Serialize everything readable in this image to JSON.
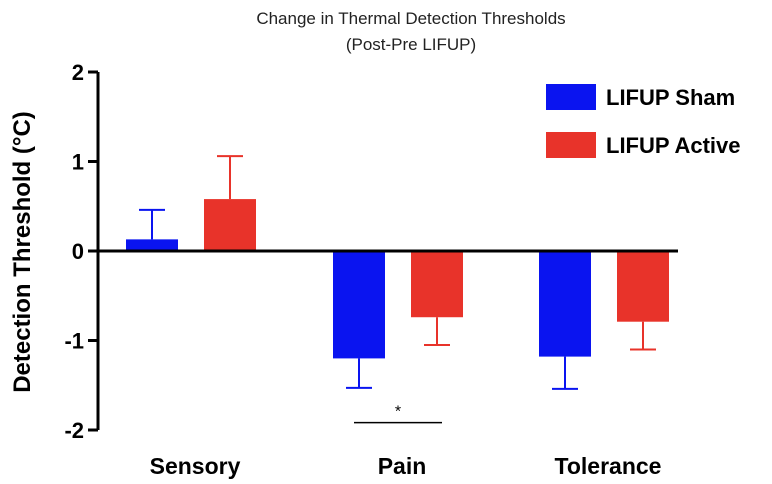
{
  "chart_data": {
    "type": "bar",
    "title": "Change in Thermal Detection Thresholds",
    "subtitle": "(Post-Pre LIFUP)",
    "xlabel": "",
    "ylabel": "Detection Threshold (°C)",
    "ylim": [
      -2,
      2
    ],
    "yticks": [
      2,
      1,
      0,
      -1,
      -2
    ],
    "ytick_labels": [
      "2",
      "1",
      "0",
      "-1",
      "-2"
    ],
    "categories": [
      "Sensory",
      "Pain",
      "Tolerance"
    ],
    "series": [
      {
        "name": "LIFUP Sham",
        "color": "#0a14f0",
        "values": [
          0.13,
          -1.2,
          -1.18
        ],
        "errors": [
          0.33,
          0.33,
          0.36
        ]
      },
      {
        "name": "LIFUP Active",
        "color": "#e8332a",
        "values": [
          0.58,
          -0.74,
          -0.79
        ],
        "errors": [
          0.48,
          0.31,
          0.31
        ]
      }
    ],
    "legend_position": "top-right",
    "annotations": [
      {
        "text": "*",
        "category": "Pain",
        "y": -1.75
      }
    ]
  }
}
